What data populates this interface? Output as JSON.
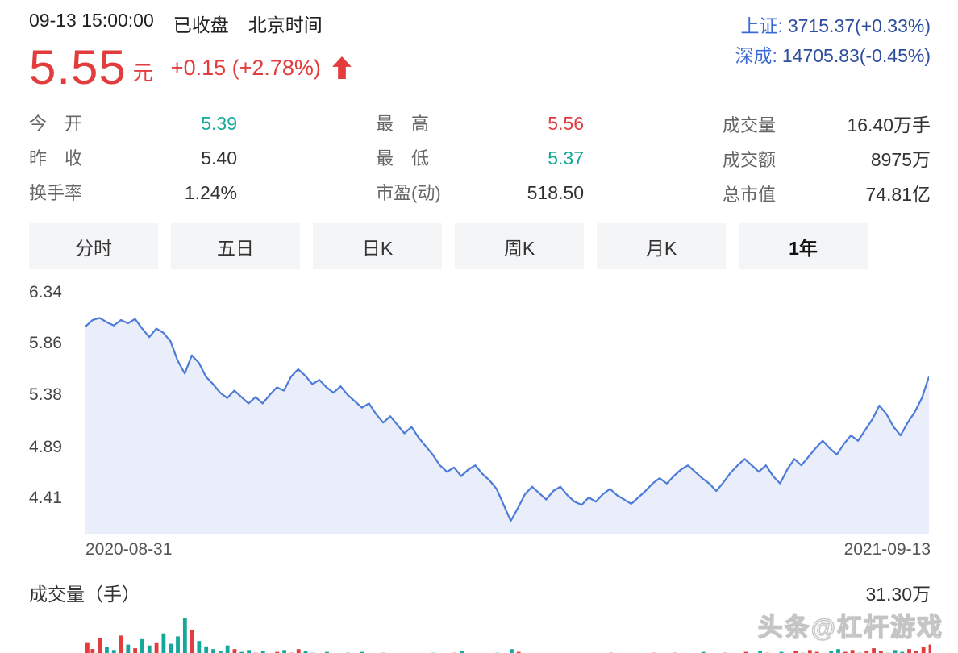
{
  "colors": {
    "up_red": "#e23c3c",
    "down_teal": "#15a89a",
    "index_blue": "#3b6ad6",
    "line_blue": "#4d7bd8",
    "area_blue": "rgba(86,124,216,0.13)"
  },
  "header": {
    "datetime": "09-13 15:00:00",
    "status": "已收盘",
    "timezone": "北京时间",
    "indices": [
      {
        "label": "上证:",
        "value": "3715.37(+0.33%)"
      },
      {
        "label": "深成:",
        "value": "14705.83(-0.45%)"
      }
    ]
  },
  "quote": {
    "price": "5.55",
    "unit": "元",
    "change": "+0.15 (+2.78%)",
    "direction": "up"
  },
  "stats": {
    "columns": [
      {
        "rows": [
          {
            "label": "今　开",
            "value": "5.39",
            "color": "teal"
          },
          {
            "label": "昨　收",
            "value": "5.40",
            "color": "dark"
          },
          {
            "label": "换手率",
            "value": "1.24%",
            "color": "dark"
          }
        ]
      },
      {
        "rows": [
          {
            "label": "最　高",
            "value": "5.56",
            "color": "red"
          },
          {
            "label": "最　低",
            "value": "5.37",
            "color": "teal"
          },
          {
            "label": "市盈(动)",
            "value": "518.50",
            "color": "dark"
          }
        ]
      },
      {
        "rows": [
          {
            "label": "成交量",
            "value": "16.40万手",
            "color": "dark"
          },
          {
            "label": "成交额",
            "value": "8975万",
            "color": "dark"
          },
          {
            "label": "总市值",
            "value": "74.81亿",
            "color": "dark"
          }
        ]
      }
    ]
  },
  "tabs": [
    {
      "label": "分时",
      "active": false
    },
    {
      "label": "五日",
      "active": false
    },
    {
      "label": "日K",
      "active": false
    },
    {
      "label": "周K",
      "active": false
    },
    {
      "label": "月K",
      "active": false
    },
    {
      "label": "1年",
      "active": true
    }
  ],
  "volume_pane": {
    "title": "成交量（手）",
    "max_label": "31.30万"
  },
  "watermark": "头条@杠杆游戏",
  "chart_data": {
    "type": "line",
    "title": "",
    "xlabel": "",
    "ylabel": "",
    "grid": false,
    "x_labels": [
      "2020-08-31",
      "2021-09-13"
    ],
    "y_ticks": [
      6.34,
      5.86,
      5.38,
      4.89,
      4.41
    ],
    "ylim": [
      4.08,
      6.42
    ],
    "series": [
      {
        "values": [
          6.02,
          6.08,
          6.1,
          6.06,
          6.03,
          6.08,
          6.05,
          6.09,
          6.0,
          5.92,
          6.0,
          5.96,
          5.88,
          5.7,
          5.58,
          5.75,
          5.68,
          5.55,
          5.48,
          5.4,
          5.35,
          5.42,
          5.36,
          5.3,
          5.36,
          5.3,
          5.38,
          5.45,
          5.42,
          5.55,
          5.62,
          5.56,
          5.48,
          5.52,
          5.45,
          5.4,
          5.46,
          5.38,
          5.32,
          5.26,
          5.3,
          5.2,
          5.12,
          5.18,
          5.1,
          5.02,
          5.08,
          4.98,
          4.9,
          4.82,
          4.72,
          4.66,
          4.7,
          4.62,
          4.68,
          4.72,
          4.64,
          4.58,
          4.5,
          4.35,
          4.2,
          4.32,
          4.45,
          4.52,
          4.46,
          4.4,
          4.48,
          4.52,
          4.44,
          4.38,
          4.35,
          4.42,
          4.38,
          4.45,
          4.5,
          4.44,
          4.4,
          4.36,
          4.42,
          4.48,
          4.55,
          4.6,
          4.55,
          4.62,
          4.68,
          4.72,
          4.66,
          4.6,
          4.55,
          4.48,
          4.56,
          4.65,
          4.72,
          4.78,
          4.72,
          4.66,
          4.72,
          4.62,
          4.55,
          4.68,
          4.78,
          4.72,
          4.8,
          4.88,
          4.95,
          4.88,
          4.82,
          4.92,
          5.0,
          4.95,
          5.05,
          5.15,
          5.28,
          5.2,
          5.08,
          5.0,
          5.12,
          5.22,
          5.35,
          5.55
        ]
      }
    ],
    "volume": {
      "unit": "万手",
      "max_label": "31.30万",
      "values": [
        14.2,
        9.5,
        17.3,
        11.0,
        8.8,
        18.8,
        12.5,
        10.0,
        16.3,
        11.9,
        14.1,
        20.3,
        13.1,
        18.2,
        31.3,
        22.5,
        15.0,
        11.3,
        9.4,
        8.1,
        11.9,
        9.4,
        7.5,
        8.8,
        6.9,
        8.1,
        6.3,
        7.5,
        8.8,
        6.9,
        9.4,
        8.1,
        6.9,
        5.6,
        7.5,
        6.3,
        5.0,
        6.9,
        5.6,
        7.5,
        6.3,
        5.6,
        6.9,
        5.0,
        6.3,
        5.6,
        4.4,
        6.3,
        5.0,
        6.9,
        5.6,
        5.0,
        6.9,
        8.1,
        6.3,
        5.0,
        4.4,
        5.6,
        6.9,
        5.0,
        9.4,
        7.5,
        6.3,
        5.0,
        6.3,
        4.4,
        5.6,
        5.0,
        6.3,
        5.6,
        4.4,
        5.0,
        6.3,
        5.6,
        6.9,
        5.0,
        4.4,
        5.6,
        5.0,
        6.3,
        6.9,
        5.6,
        5.0,
        6.9,
        5.6,
        5.0,
        6.3,
        7.5,
        5.6,
        5.0,
        6.9,
        6.3,
        5.0,
        7.5,
        6.3,
        8.1,
        6.9,
        5.6,
        7.5,
        6.3,
        8.1,
        6.9,
        8.8,
        7.5,
        6.3,
        8.1,
        9.4,
        7.5,
        8.8,
        6.9,
        8.1,
        10.0,
        8.1,
        6.9,
        8.8,
        7.5,
        9.4,
        8.1,
        10.6,
        12.5
      ]
    }
  }
}
